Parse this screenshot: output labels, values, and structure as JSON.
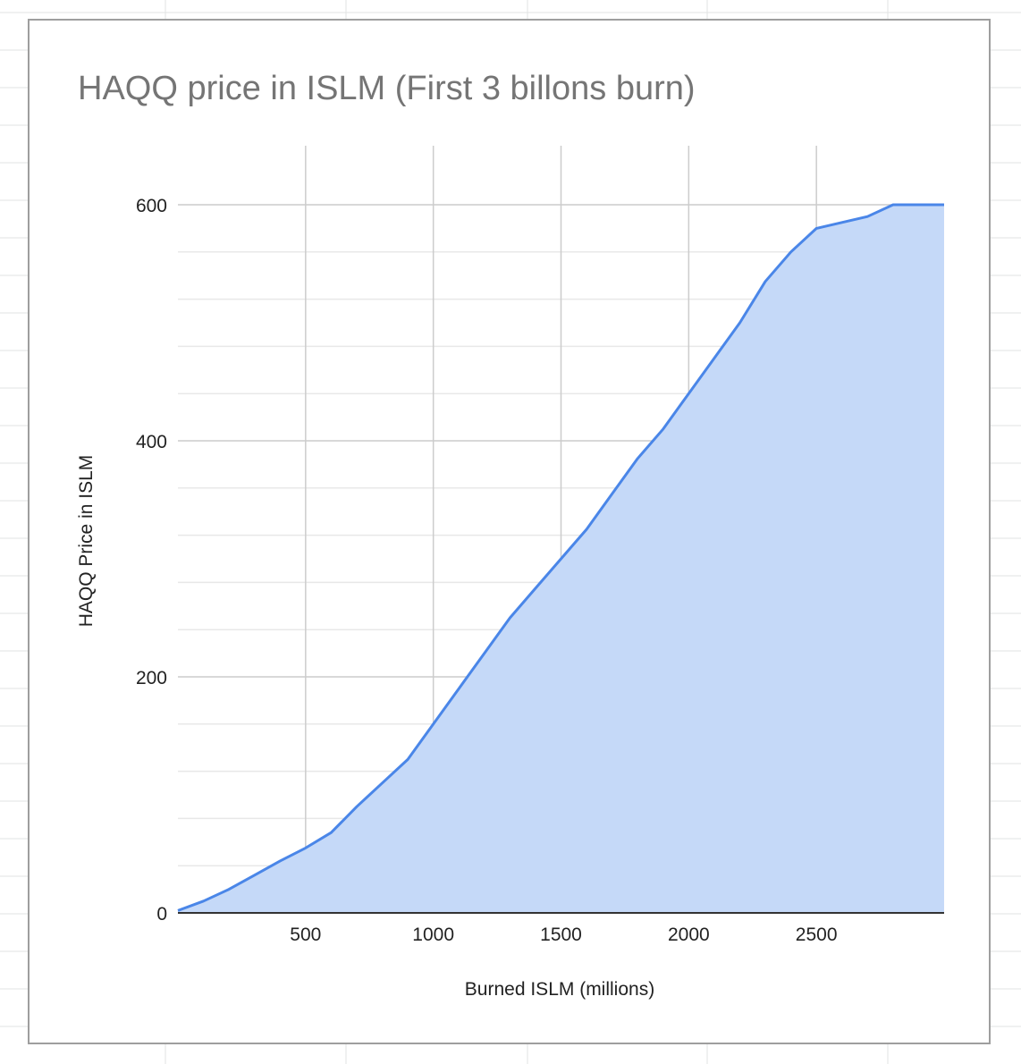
{
  "chart_data": {
    "type": "area",
    "title": "HAQQ price in ISLM (First 3 billons burn)",
    "xlabel": "Burned ISLM (millions)",
    "ylabel": "HAQQ Price in ISLM",
    "xlim": [
      0,
      3000
    ],
    "ylim": [
      0,
      600
    ],
    "x_ticks": [
      500,
      1000,
      1500,
      2000,
      2500
    ],
    "y_ticks": [
      0,
      200,
      400,
      600
    ],
    "grid": true,
    "legend": "none",
    "series": [
      {
        "color": "#4a86e8",
        "fill": "#c5d9f8",
        "x": [
          0,
          100,
          200,
          300,
          400,
          500,
          600,
          700,
          800,
          900,
          1000,
          1100,
          1200,
          1300,
          1400,
          1500,
          1600,
          1700,
          1800,
          1900,
          2000,
          2100,
          2200,
          2300,
          2400,
          2500,
          2600,
          2700,
          2800,
          2900,
          3000
        ],
        "y": [
          2,
          10,
          20,
          32,
          44,
          55,
          68,
          90,
          110,
          130,
          160,
          190,
          220,
          250,
          275,
          300,
          325,
          355,
          385,
          410,
          440,
          470,
          500,
          535,
          560,
          580,
          585,
          590,
          600,
          600,
          600
        ]
      }
    ]
  }
}
